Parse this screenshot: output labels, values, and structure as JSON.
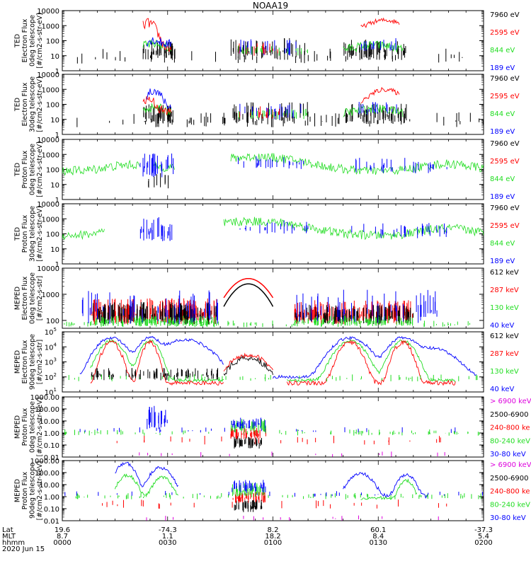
{
  "title": "NOAA19",
  "colors": {
    "black": "#000000",
    "red": "#ff0000",
    "green": "#22dd22",
    "blue": "#0000ff",
    "magenta": "#dd00dd"
  },
  "chart_data": [
    {
      "type": "line",
      "panel": "ted-electron-0deg",
      "ylabel_lines": [
        "TED",
        "Electron Flux",
        "0deg telescope",
        "[#/cm2-s-str-eV]"
      ],
      "yscale": "log",
      "ylim": [
        1,
        10000
      ],
      "yticks": [
        "1",
        "10",
        "100",
        "1000",
        "10000"
      ],
      "series": [
        {
          "name": "7960 eV",
          "color": "black"
        },
        {
          "name": "2595 eV",
          "color": "red"
        },
        {
          "name": "844 eV",
          "color": "green"
        },
        {
          "name": "189 eV",
          "color": "blue"
        }
      ]
    },
    {
      "type": "line",
      "panel": "ted-electron-30deg",
      "ylabel_lines": [
        "TED",
        "Electron Flux",
        "30deg telescope",
        "[#/cm2-s-str-eV]"
      ],
      "yscale": "log",
      "ylim": [
        1,
        10000
      ],
      "yticks": [
        "1",
        "10",
        "100",
        "1000",
        "10000"
      ],
      "series": [
        {
          "name": "7960 eV",
          "color": "black"
        },
        {
          "name": "2595 eV",
          "color": "red"
        },
        {
          "name": "844 eV",
          "color": "green"
        },
        {
          "name": "189 eV",
          "color": "blue"
        }
      ]
    },
    {
      "type": "line",
      "panel": "ted-proton-0deg",
      "ylabel_lines": [
        "TED",
        "Proton Flux",
        "0deg telescope",
        "[#/cm2-s-str-eV]"
      ],
      "yscale": "log",
      "ylim": [
        1,
        10000
      ],
      "yticks": [
        "1",
        "10",
        "100",
        "1000",
        "10000"
      ],
      "series": [
        {
          "name": "7960 eV",
          "color": "black"
        },
        {
          "name": "2595 eV",
          "color": "red"
        },
        {
          "name": "844 eV",
          "color": "green"
        },
        {
          "name": "189 eV",
          "color": "blue"
        }
      ]
    },
    {
      "type": "line",
      "panel": "ted-proton-30deg",
      "ylabel_lines": [
        "TED",
        "Proton Flux",
        "30deg telescope",
        "[#/cm2-s-str-eV]"
      ],
      "yscale": "log",
      "ylim": [
        1,
        10000
      ],
      "yticks": [
        "1",
        "10",
        "100",
        "1000",
        "10000"
      ],
      "series": [
        {
          "name": "7960 eV",
          "color": "black"
        },
        {
          "name": "2595 eV",
          "color": "red"
        },
        {
          "name": "844 eV",
          "color": "green"
        },
        {
          "name": "189 eV",
          "color": "blue"
        }
      ]
    },
    {
      "type": "line",
      "panel": "meped-electron-0deg",
      "ylabel_lines": [
        "MEPED",
        "Electron Flux",
        "0deg telescope",
        "[#/cm2-s-str]"
      ],
      "yscale": "log",
      "ylim": [
        50,
        10000
      ],
      "yticks": [
        "100",
        "1000",
        "10000"
      ],
      "series": [
        {
          "name": "612 keV",
          "color": "black"
        },
        {
          "name": "287 keV",
          "color": "red"
        },
        {
          "name": "130 keV",
          "color": "green"
        },
        {
          "name": "40 keV",
          "color": "blue"
        }
      ]
    },
    {
      "type": "line",
      "panel": "meped-electron-90deg",
      "ylabel_lines": [
        "MEPED",
        "Electron Flux",
        "90deg telescope",
        "[#/cm2-s-str]"
      ],
      "yscale": "log",
      "ylim": [
        10,
        100000
      ],
      "yticks": [
        "10",
        "10",
        "10",
        "10",
        "10"
      ],
      "ytick_exponents": [
        "1",
        "2",
        "3",
        "4",
        "5"
      ],
      "series": [
        {
          "name": "612 keV",
          "color": "black"
        },
        {
          "name": "287 keV",
          "color": "red"
        },
        {
          "name": "130 keV",
          "color": "green"
        },
        {
          "name": "40 keV",
          "color": "blue"
        }
      ]
    },
    {
      "type": "line",
      "panel": "meped-proton-0deg",
      "ylabel_lines": [
        "MEPED",
        "Proton Flux",
        "0deg telescope",
        "[#/cm2-s-str-keV]"
      ],
      "yscale": "log",
      "ylim": [
        0.01,
        1000
      ],
      "yticks": [
        "0.01",
        "0.10",
        "1.00",
        "10.00",
        "100.00",
        "1000.00"
      ],
      "series": [
        {
          "name": "> 6900 keV",
          "color": "magenta"
        },
        {
          "name": "2500-6900",
          "color": "black"
        },
        {
          "name": "240-800 ke",
          "color": "red"
        },
        {
          "name": "80-240 keV",
          "color": "green"
        },
        {
          "name": "30-80 keV",
          "color": "blue"
        }
      ]
    },
    {
      "type": "line",
      "panel": "meped-proton-90deg",
      "ylabel_lines": [
        "MEPED",
        "Proton Flux",
        "90deg telescope",
        "[#/cm2-s-str-keV]"
      ],
      "yscale": "log",
      "ylim": [
        0.01,
        1000
      ],
      "yticks": [
        "0.01",
        "0.10",
        "1.00",
        "10.00",
        "100.00",
        "1000.00"
      ],
      "series": [
        {
          "name": "> 6900 keV",
          "color": "magenta"
        },
        {
          "name": "2500-6900",
          "color": "black"
        },
        {
          "name": "240-800 ke",
          "color": "red"
        },
        {
          "name": "80-240 keV",
          "color": "green"
        },
        {
          "name": "30-80 keV",
          "color": "blue"
        }
      ]
    }
  ],
  "x_axis": {
    "row_labels": [
      "Lat",
      "MLT",
      "hhmm"
    ],
    "date": "2020 Jun 15",
    "ticks": [
      {
        "time": "0000",
        "lat": "19.6",
        "mlt": "8.7"
      },
      {
        "time": "0030",
        "lat": "-74.3",
        "mlt": "1.1"
      },
      {
        "time": "0100",
        "lat": "8.2",
        "mlt": "18.2"
      },
      {
        "time": "0130",
        "lat": "60.1",
        "mlt": "8.4"
      },
      {
        "time": "0200",
        "lat": "-37.3",
        "mlt": "5.4"
      }
    ]
  }
}
